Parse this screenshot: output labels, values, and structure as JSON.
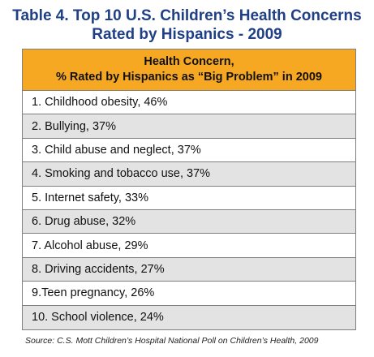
{
  "title_line1": "Table 4. Top 10 U.S. Children’s Health Concerns",
  "title_line2": "Rated by Hispanics - 2009",
  "header_line1": "Health Concern,",
  "header_line2": "% Rated by Hispanics as “Big Problem” in 2009",
  "rows": [
    "1. Childhood obesity, 46%",
    "2. Bullying, 37%",
    "3. Child abuse and neglect, 37%",
    "4. Smoking and tobacco use, 37%",
    "5. Internet safety, 33%",
    "6. Drug abuse, 32%",
    "7. Alcohol abuse, 29%",
    "8. Driving accidents, 27%",
    "9.Teen pregnancy, 26%",
    "10. School violence, 24%"
  ],
  "source": "Source: C.S. Mott Children’s Hospital National Poll on Children’s Health, 2009",
  "colors": {
    "title": "#1f3f86",
    "header": "#f7a823",
    "alt_row": "#e3e3e3"
  },
  "chart_data": {
    "type": "table",
    "title": "Table 4. Top 10 U.S. Children’s Health Concerns Rated by Hispanics - 2009",
    "columns": [
      "Health Concern, % Rated by Hispanics as “Big Problem” in 2009"
    ],
    "categories": [
      "Childhood obesity",
      "Bullying",
      "Child abuse and neglect",
      "Smoking and tobacco use",
      "Internet safety",
      "Drug abuse",
      "Alcohol abuse",
      "Driving accidents",
      "Teen pregnancy",
      "School violence"
    ],
    "values": [
      46,
      37,
      37,
      37,
      33,
      32,
      29,
      27,
      26,
      24
    ]
  }
}
